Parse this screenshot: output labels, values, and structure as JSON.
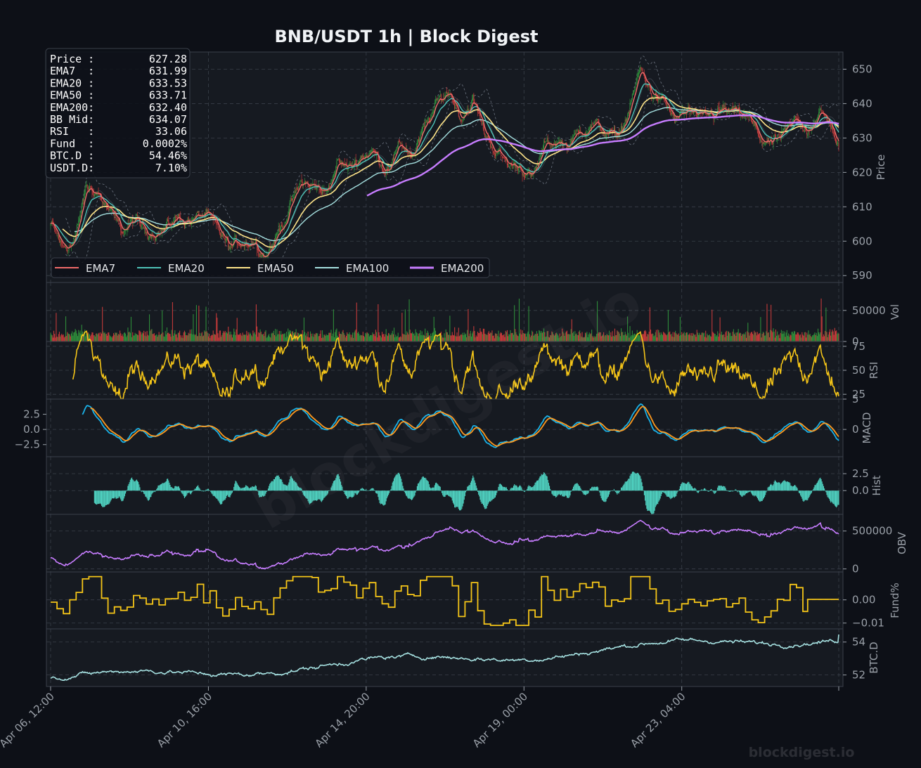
{
  "title": "BNB/USDT  1h  |  Block Digest",
  "watermark_center": "blockdigest.io",
  "watermark_footer": "blockdigest.io",
  "info_box": [
    {
      "label": "Price :",
      "value": "627.28"
    },
    {
      "label": "EMA7  :",
      "value": "631.99"
    },
    {
      "label": "EMA20 :",
      "value": "633.53"
    },
    {
      "label": "EMA50 :",
      "value": "633.71"
    },
    {
      "label": "EMA200:",
      "value": "632.40"
    },
    {
      "label": "BB Mid:",
      "value": "634.07"
    },
    {
      "label": "RSI   :",
      "value": "33.06"
    },
    {
      "label": "Fund  :",
      "value": "0.0002%"
    },
    {
      "label": "BTC.D :",
      "value": "54.46%"
    },
    {
      "label": "USDT.D:",
      "value": "7.10%"
    }
  ],
  "colors": {
    "background": "#0d1017",
    "panel": "#161a21",
    "grid": "#3a404a",
    "up": "#2e8b3a",
    "down": "#c23a3a",
    "ema7": "#ef6a6a",
    "ema20": "#4fc3b8",
    "ema50": "#ffe58a",
    "ema100": "#a5e0e0",
    "ema200": "#c77dff",
    "rsi": "#f5c518",
    "macd": "#1ab2e8",
    "signal": "#ff9a1f",
    "hist": "#4fd1c0",
    "obv": "#c77dff",
    "fund": "#f5c518",
    "btcd": "#a5e0e0"
  },
  "chart_data": {
    "type": "line",
    "x_ticks": [
      "Apr 06, 12:00",
      "Apr 10, 16:00",
      "Apr 14, 20:00",
      "Apr 19, 00:00",
      "Apr 23, 04:00"
    ],
    "panels": [
      {
        "name": "price",
        "ylabel": "Price",
        "yticks": [
          590,
          600,
          610,
          620,
          630,
          640,
          650
        ],
        "ylim": [
          588,
          655
        ],
        "series_type": "candlestick + lines",
        "price_anchors": [
          [
            0,
            605
          ],
          [
            15,
            598
          ],
          [
            30,
            600
          ],
          [
            45,
            616
          ],
          [
            60,
            614
          ],
          [
            75,
            608
          ],
          [
            90,
            603
          ],
          [
            105,
            606
          ],
          [
            120,
            603
          ],
          [
            140,
            603
          ],
          [
            160,
            607
          ],
          [
            175,
            606
          ],
          [
            195,
            608
          ],
          [
            210,
            603
          ],
          [
            225,
            598
          ],
          [
            240,
            600
          ],
          [
            255,
            600
          ],
          [
            270,
            596
          ],
          [
            285,
            602
          ],
          [
            300,
            610
          ],
          [
            315,
            617
          ],
          [
            330,
            616
          ],
          [
            345,
            614
          ],
          [
            360,
            623
          ],
          [
            375,
            621
          ],
          [
            390,
            625
          ],
          [
            405,
            626
          ],
          [
            420,
            621
          ],
          [
            440,
            628
          ],
          [
            455,
            625
          ],
          [
            470,
            633
          ],
          [
            485,
            640
          ],
          [
            500,
            644
          ],
          [
            515,
            636
          ],
          [
            530,
            641
          ],
          [
            545,
            631
          ],
          [
            560,
            626
          ],
          [
            575,
            622
          ],
          [
            590,
            622
          ],
          [
            605,
            618
          ],
          [
            620,
            628
          ],
          [
            635,
            629
          ],
          [
            650,
            628
          ],
          [
            665,
            632
          ],
          [
            680,
            634
          ],
          [
            695,
            632
          ],
          [
            710,
            630
          ],
          [
            725,
            637
          ],
          [
            740,
            650
          ],
          [
            755,
            643
          ],
          [
            770,
            640
          ],
          [
            785,
            635
          ],
          [
            800,
            638
          ],
          [
            815,
            635
          ],
          [
            830,
            637
          ],
          [
            845,
            638
          ],
          [
            860,
            637
          ],
          [
            875,
            636
          ],
          [
            890,
            630
          ],
          [
            905,
            628
          ],
          [
            920,
            631
          ],
          [
            935,
            635
          ],
          [
            950,
            633
          ],
          [
            965,
            637
          ],
          [
            980,
            634
          ],
          [
            989,
            627.28
          ]
        ],
        "legend": [
          "EMA7",
          "EMA20",
          "EMA50",
          "EMA100",
          "EMA200"
        ],
        "legend_position": "lower-left"
      },
      {
        "name": "volume",
        "ylabel": "Vol",
        "yticks": [
          0,
          50000
        ],
        "ylim": [
          0,
          95000
        ]
      },
      {
        "name": "rsi",
        "ylabel": "RSI",
        "yticks": [
          25,
          50,
          75
        ],
        "ylim": [
          20,
          80
        ],
        "last": 33.06
      },
      {
        "name": "macd",
        "ylabel": "MACD",
        "yticks_left": [
          2.5,
          0.0,
          -2.5
        ],
        "yticks_right": [
          5,
          0
        ],
        "ylim": [
          -4.5,
          5
        ]
      },
      {
        "name": "hist",
        "ylabel": "Hist",
        "yticks": [
          2.5,
          0.0
        ],
        "ylim": [
          -3.5,
          5
        ]
      },
      {
        "name": "obv",
        "ylabel": "OBV",
        "yticks": [
          0,
          500000
        ],
        "ylim": [
          -40000,
          720000
        ]
      },
      {
        "name": "funding",
        "ylabel": "Fund%",
        "yticks": [
          0.0,
          -0.01
        ],
        "tick_labels": [
          "0.00",
          "−0.01"
        ],
        "ylim": [
          -0.0125,
          0.012
        ],
        "last": 0.0002
      },
      {
        "name": "btc_dominance",
        "ylabel": "BTC.D",
        "yticks": [
          52,
          54
        ],
        "ylim": [
          51.3,
          54.8
        ],
        "last": 54.46
      }
    ]
  }
}
